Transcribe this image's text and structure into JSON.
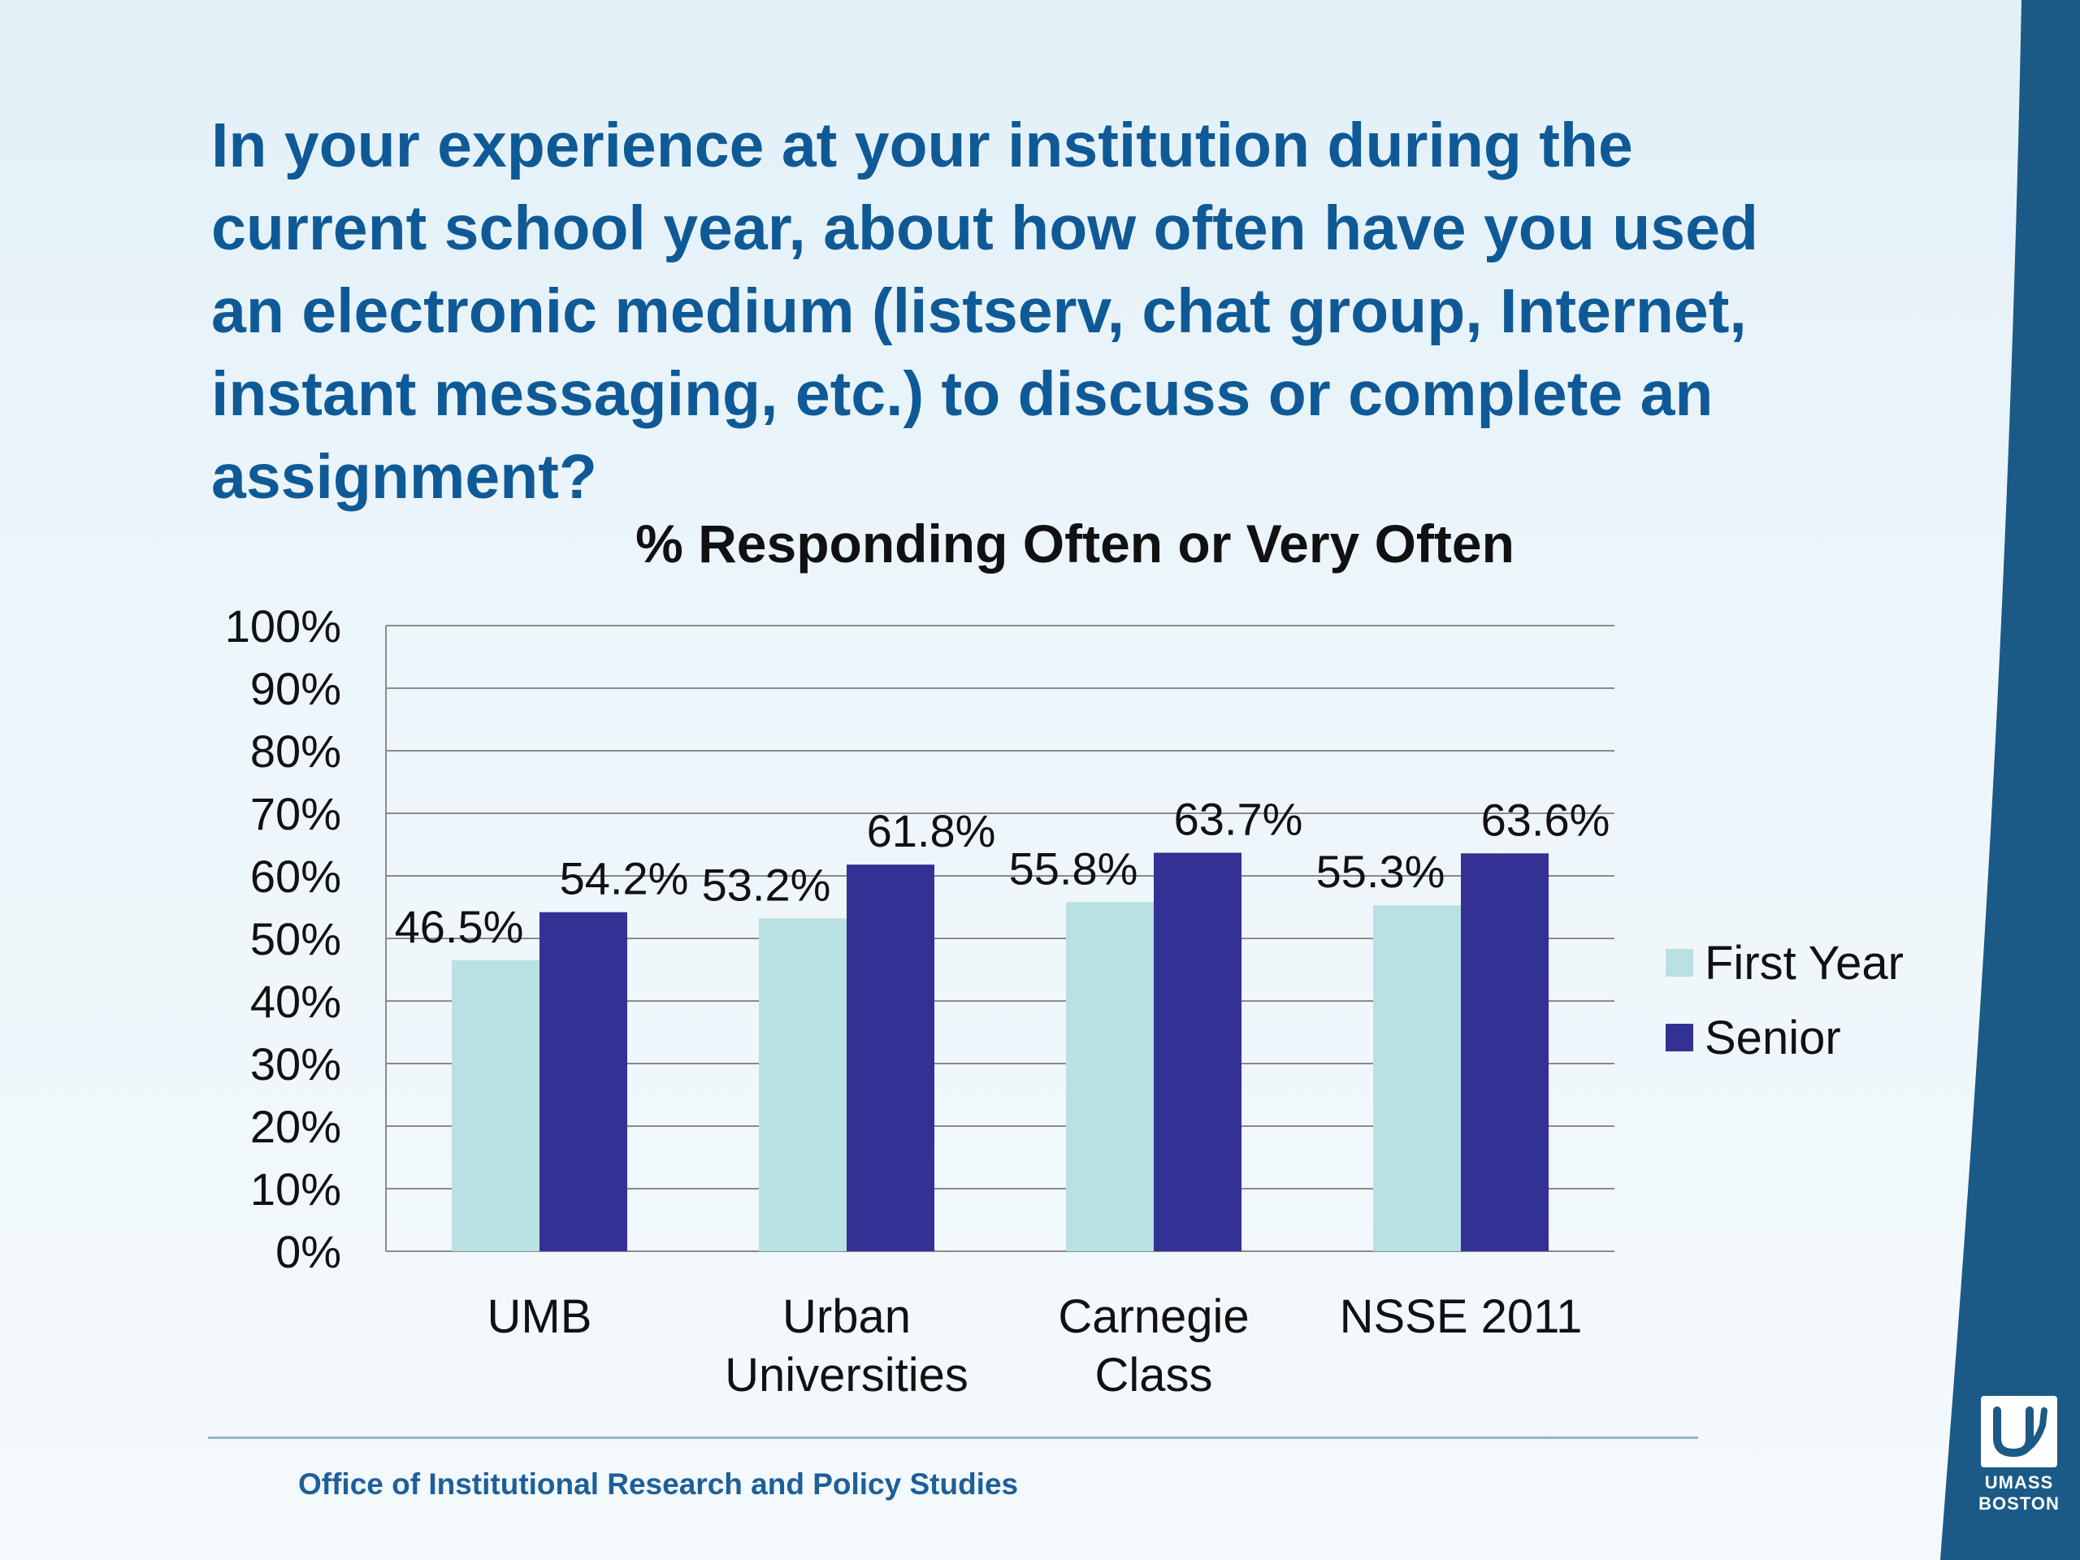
{
  "slide": {
    "question_lines": [
      "In your experience at your institution during the",
      "current school year, about how often have you used",
      "an electronic medium (listserv, chat group, Internet,",
      "instant messaging, etc.) to discuss or complete an",
      "assignment?"
    ],
    "footer": "Office of Institutional Research and Policy Studies",
    "logo_text": [
      "UMASS",
      "BOSTON"
    ],
    "colors": {
      "title": "#0f5a96",
      "footer_text": "#1d5f9a",
      "brand_band": "#1b5a86",
      "first_year": "#b9e0e3",
      "senior": "#343194"
    }
  },
  "chart_data": {
    "type": "bar",
    "title": "% Responding Often or Very Often",
    "categories": [
      [
        "UMB"
      ],
      [
        "Urban",
        "Universities"
      ],
      [
        "Carnegie",
        "Class"
      ],
      [
        "NSSE 2011"
      ]
    ],
    "series": [
      {
        "name": "First Year",
        "values": [
          46.5,
          53.2,
          55.8,
          55.3
        ],
        "color": "#b9e0e3"
      },
      {
        "name": "Senior",
        "values": [
          54.2,
          61.8,
          63.7,
          63.6
        ],
        "color": "#343194"
      }
    ],
    "data_labels": [
      [
        "46.5%",
        "53.2%",
        "55.8%",
        "55.3%"
      ],
      [
        "54.2%",
        "61.8%",
        "63.7%",
        "63.6%"
      ]
    ],
    "ylim": [
      0,
      100
    ],
    "yticks": [
      0,
      10,
      20,
      30,
      40,
      50,
      60,
      70,
      80,
      90,
      100
    ],
    "ytick_labels": [
      "0%",
      "10%",
      "20%",
      "30%",
      "40%",
      "50%",
      "60%",
      "70%",
      "80%",
      "90%",
      "100%"
    ],
    "grid": true,
    "legend_position": "right"
  }
}
